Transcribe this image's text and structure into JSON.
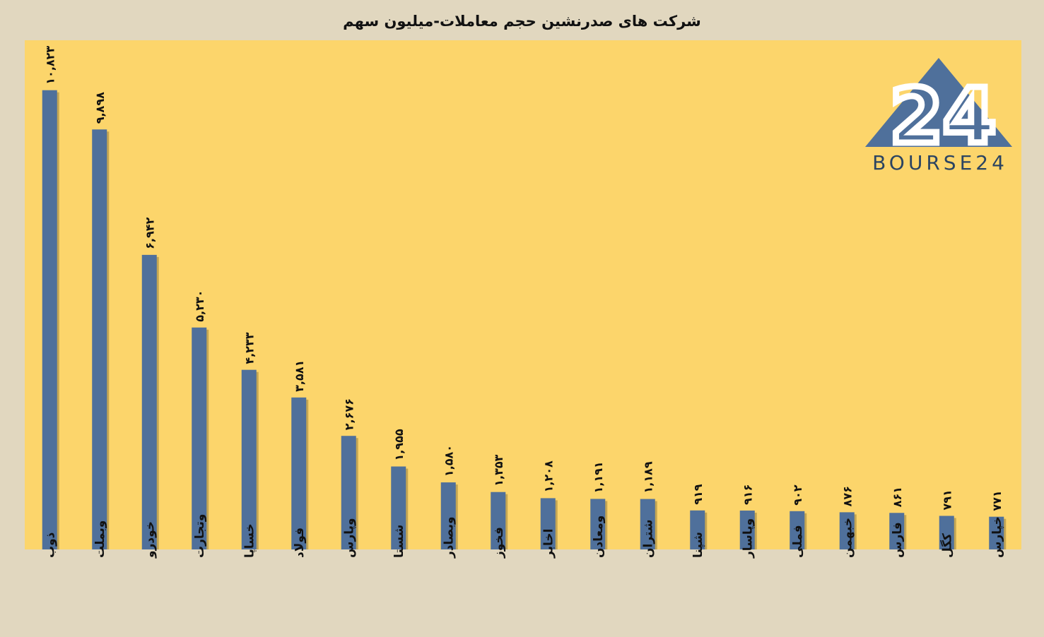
{
  "chart_data": {
    "type": "bar",
    "title": "شرکت های صدرنشین حجم معاملات-میلیون سهم",
    "categories": [
      "ذوب",
      "وبملت",
      "خودرو",
      "وتجارت",
      "خساپا",
      "فولاد",
      "وپارس",
      "شستا",
      "وبصادر",
      "فخوز",
      "اخابر",
      "ومعادن",
      "شتران",
      "شپنا",
      "وپاسار",
      "فملی",
      "خبهمن",
      "فارس",
      "کگل",
      "خپارس"
    ],
    "values": [
      10823,
      9898,
      6942,
      5230,
      4233,
      3581,
      2676,
      1955,
      1580,
      1353,
      1208,
      1191,
      1189,
      919,
      916,
      902,
      876,
      861,
      791,
      771
    ],
    "data_labels": [
      "۱۰,۸۲۳",
      "۹,۸۹۸",
      "۶,۹۴۲",
      "۵,۲۳۰",
      "۴,۲۳۳",
      "۳,۵۸۱",
      "۲,۶۷۶",
      "۱,۹۵۵",
      "۱,۵۸۰",
      "۱,۳۵۳",
      "۱,۲۰۸",
      "۱,۱۹۱",
      "۱,۱۸۹",
      "۹۱۹",
      "۹۱۶",
      "۹۰۲",
      "۸۷۶",
      "۸۶۱",
      "۷۹۱",
      "۷۷۱"
    ],
    "ylim": [
      0,
      12000
    ],
    "grid": false,
    "colors": {
      "bar": "#4f709b",
      "plot_bg": "#fcd56b",
      "page_bg": "#e1d7bf"
    }
  },
  "logo": {
    "text": "BOURSE24",
    "mark": "24",
    "colors": {
      "triangle": "#4f709b",
      "mark": "#ffffff",
      "text": "#2b4461"
    }
  }
}
